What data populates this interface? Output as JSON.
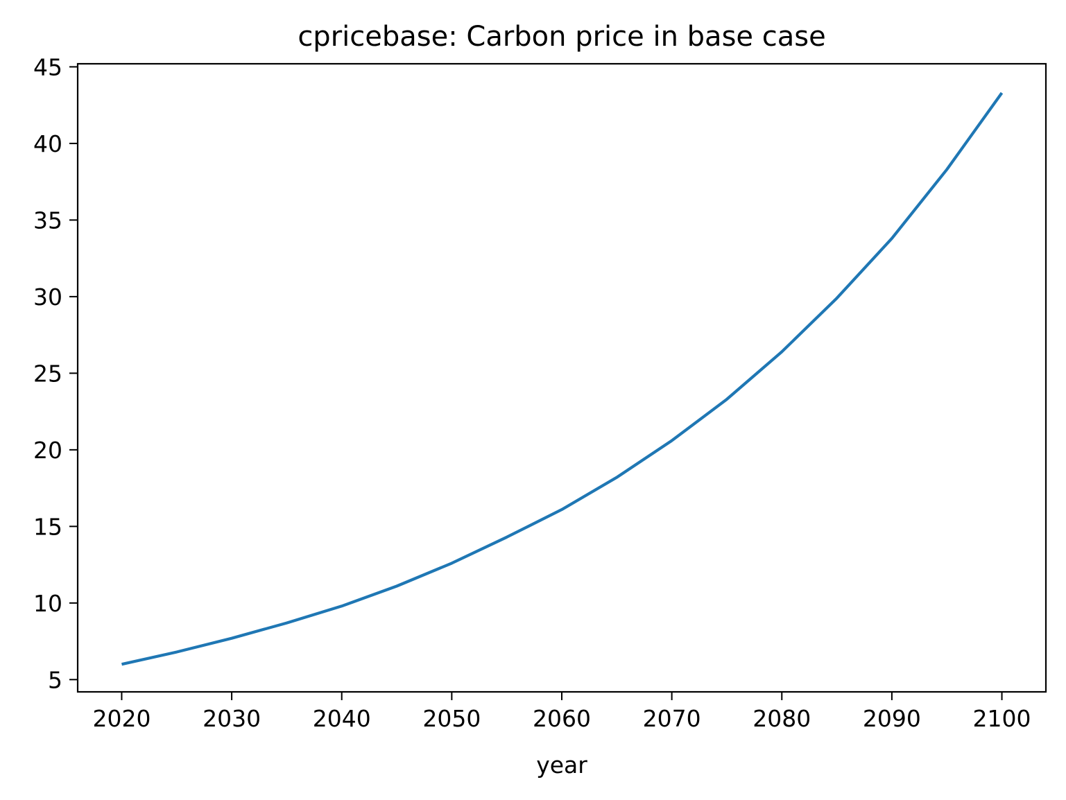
{
  "chart_data": {
    "type": "line",
    "title": "cpricebase: Carbon price in base case",
    "xlabel": "year",
    "ylabel": "",
    "xlim": [
      2016,
      2104
    ],
    "ylim": [
      4.2,
      45.2
    ],
    "xticks": [
      2020,
      2030,
      2040,
      2050,
      2060,
      2070,
      2080,
      2090,
      2100
    ],
    "yticks": [
      5,
      10,
      15,
      20,
      25,
      30,
      35,
      40,
      45
    ],
    "grid": false,
    "legend": "none",
    "series": [
      {
        "color": "#1f77b4",
        "x": [
          2020,
          2025,
          2030,
          2035,
          2040,
          2045,
          2050,
          2055,
          2060,
          2065,
          2070,
          2075,
          2080,
          2085,
          2090,
          2095,
          2100
        ],
        "y": [
          6.0,
          6.8,
          7.7,
          8.7,
          9.8,
          11.1,
          12.6,
          14.3,
          16.1,
          18.2,
          20.6,
          23.3,
          26.4,
          29.9,
          33.8,
          38.3,
          43.3
        ]
      }
    ]
  }
}
